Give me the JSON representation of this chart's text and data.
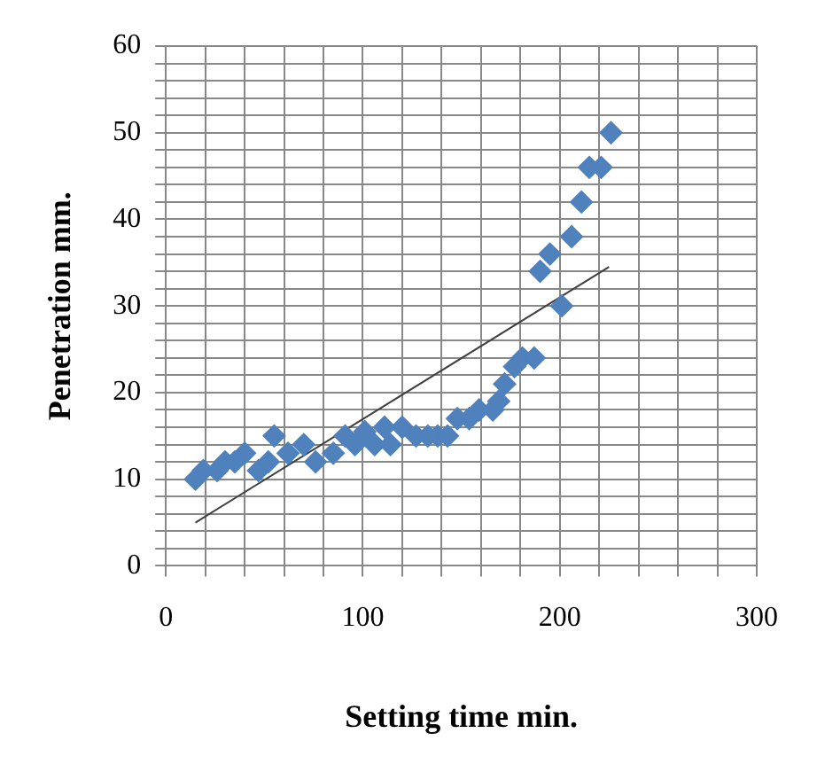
{
  "chart_data": {
    "type": "scatter",
    "xlabel": "Setting time min.",
    "ylabel": "Penetration mm.",
    "xlim": [
      0,
      300
    ],
    "ylim": [
      0,
      60
    ],
    "xticks": [
      0,
      {
        "value": 20,
        "label": null
      },
      {
        "value": 40,
        "label": null
      },
      {
        "value": 60,
        "label": null
      },
      {
        "value": 80,
        "label": null
      },
      100,
      {
        "value": 120,
        "label": null
      },
      {
        "value": 140,
        "label": null
      },
      {
        "value": 160,
        "label": null
      },
      {
        "value": 180,
        "label": null
      },
      200,
      {
        "value": 220,
        "label": null
      },
      {
        "value": 240,
        "label": null
      },
      {
        "value": 260,
        "label": null
      },
      {
        "value": 280,
        "label": null
      },
      300
    ],
    "yticks": [
      0,
      {
        "value": 2,
        "label": null
      },
      {
        "value": 4,
        "label": null
      },
      {
        "value": 6,
        "label": null
      },
      {
        "value": 8,
        "label": null
      },
      10,
      {
        "value": 12,
        "label": null
      },
      {
        "value": 14,
        "label": null
      },
      {
        "value": 16,
        "label": null
      },
      {
        "value": 18,
        "label": null
      },
      20,
      {
        "value": 22,
        "label": null
      },
      {
        "value": 24,
        "label": null
      },
      {
        "value": 26,
        "label": null
      },
      {
        "value": 28,
        "label": null
      },
      30,
      {
        "value": 32,
        "label": null
      },
      {
        "value": 34,
        "label": null
      },
      {
        "value": 36,
        "label": null
      },
      {
        "value": 38,
        "label": null
      },
      40,
      {
        "value": 42,
        "label": null
      },
      {
        "value": 44,
        "label": null
      },
      {
        "value": 46,
        "label": null
      },
      {
        "value": 48,
        "label": null
      },
      50,
      {
        "value": 52,
        "label": null
      },
      {
        "value": 54,
        "label": null
      },
      {
        "value": 56,
        "label": null
      },
      {
        "value": 58,
        "label": null
      },
      60
    ],
    "grid": true,
    "legend": false,
    "marker": "diamond",
    "series": [
      {
        "color": "#4f81bd",
        "x": [
          15,
          19,
          26,
          30,
          35,
          40,
          47,
          52,
          55,
          62,
          70,
          76,
          85,
          91,
          96,
          101,
          106,
          111,
          114,
          120,
          127,
          133,
          138,
          143,
          148,
          154,
          159,
          166,
          169,
          172,
          177,
          181,
          187,
          190,
          195,
          201,
          206,
          211,
          215,
          221,
          226
        ],
        "values": [
          10,
          11,
          11,
          12,
          12,
          13,
          11,
          12,
          15,
          13,
          14,
          12,
          13,
          15,
          14,
          15.5,
          14,
          16,
          14,
          16,
          15,
          15,
          15,
          15,
          17,
          17,
          18,
          18,
          19,
          21,
          23,
          24,
          24,
          34,
          36,
          30,
          38,
          42,
          46,
          46,
          50
        ]
      },
      {
        "type": "line",
        "color": "#404040",
        "marker": "none",
        "x": [
          15,
          225
        ],
        "values": [
          5,
          34.5
        ]
      }
    ]
  }
}
